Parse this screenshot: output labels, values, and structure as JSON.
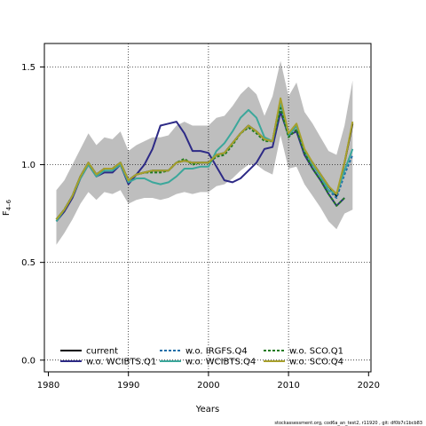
{
  "chart_data": {
    "type": "line",
    "xlabel": "Years",
    "ylabel": "F",
    "ylabel_sub": "4–6",
    "xlim": [
      1980,
      2020
    ],
    "ylim": [
      0,
      1.5
    ],
    "x_ticks": [
      1980,
      1990,
      2000,
      2010,
      2020
    ],
    "y_ticks": [
      0.0,
      0.5,
      1.0,
      1.5
    ],
    "y_tick_labels": [
      "0.0",
      "0.5",
      "1.0",
      "1.5"
    ],
    "grid": true,
    "legend_position": "bottom-left",
    "legend_columns": 3,
    "x": [
      1981,
      1982,
      1983,
      1984,
      1985,
      1986,
      1987,
      1988,
      1989,
      1990,
      1991,
      1992,
      1993,
      1994,
      1995,
      1996,
      1997,
      1998,
      1999,
      2000,
      2001,
      2002,
      2003,
      2004,
      2005,
      2006,
      2007,
      2008,
      2009,
      2010,
      2011,
      2012,
      2013,
      2014,
      2015,
      2016,
      2017,
      2018
    ],
    "band": {
      "color": "#bebebe",
      "upper": [
        0.87,
        0.92,
        1.0,
        1.08,
        1.16,
        1.1,
        1.14,
        1.13,
        1.17,
        1.07,
        1.1,
        1.12,
        1.14,
        1.14,
        1.15,
        1.2,
        1.22,
        1.2,
        1.2,
        1.2,
        1.24,
        1.25,
        1.3,
        1.36,
        1.4,
        1.36,
        1.25,
        1.35,
        1.53,
        1.35,
        1.42,
        1.27,
        1.21,
        1.14,
        1.07,
        1.05,
        1.2,
        1.43
      ],
      "lower": [
        0.59,
        0.65,
        0.72,
        0.8,
        0.86,
        0.82,
        0.86,
        0.85,
        0.87,
        0.8,
        0.82,
        0.83,
        0.83,
        0.82,
        0.83,
        0.85,
        0.86,
        0.85,
        0.86,
        0.86,
        0.89,
        0.9,
        0.93,
        0.97,
        1.0,
        1.0,
        0.97,
        0.95,
        1.15,
        0.98,
        0.99,
        0.9,
        0.84,
        0.78,
        0.71,
        0.67,
        0.75,
        0.77
      ]
    },
    "series": [
      {
        "name": "current",
        "color": "#000000",
        "dash": "",
        "values": [
          0.72,
          0.77,
          0.84,
          0.94,
          1.01,
          0.95,
          0.98,
          0.98,
          1.01,
          0.92,
          0.95,
          0.96,
          0.97,
          0.97,
          0.97,
          1.01,
          1.02,
          1.01,
          1.01,
          1.01,
          1.05,
          1.06,
          1.11,
          1.16,
          1.2,
          1.17,
          1.13,
          1.12,
          1.33,
          1.15,
          1.2,
          1.07,
          1.01,
          0.95,
          0.89,
          0.84,
          1.01,
          1.21
        ]
      },
      {
        "name": "w.o. WCIBTS.Q1",
        "color": "#2d2a86",
        "dash": "",
        "values": [
          0.71,
          0.76,
          0.83,
          0.93,
          1.0,
          0.94,
          0.96,
          0.96,
          1.0,
          0.9,
          0.95,
          1.0,
          1.08,
          1.2,
          1.21,
          1.22,
          1.16,
          1.07,
          1.07,
          1.06,
          0.99,
          0.92,
          0.91,
          0.93,
          0.97,
          1.01,
          1.08,
          1.09,
          1.27,
          1.15,
          1.17,
          1.05,
          0.98,
          0.92,
          0.85,
          0.79,
          0.83,
          null
        ]
      },
      {
        "name": "w.o. IRGFS.Q4",
        "color": "#1f6ea8",
        "dash": "3,2",
        "values": [
          0.72,
          0.77,
          0.84,
          0.94,
          1.01,
          0.95,
          0.98,
          0.98,
          1.01,
          0.92,
          0.95,
          0.96,
          0.97,
          0.97,
          0.97,
          1.01,
          1.02,
          1.01,
          1.01,
          1.01,
          1.05,
          1.06,
          1.11,
          1.16,
          1.2,
          1.17,
          1.13,
          1.12,
          1.33,
          1.15,
          1.2,
          1.07,
          1.0,
          0.94,
          0.87,
          0.83,
          0.95,
          1.05
        ]
      },
      {
        "name": "w.o. WCIBTS.Q4",
        "color": "#3ba79b",
        "dash": "",
        "values": [
          0.71,
          0.77,
          0.84,
          0.93,
          1.0,
          0.94,
          0.97,
          0.97,
          1.0,
          0.91,
          0.93,
          0.93,
          0.91,
          0.9,
          0.91,
          0.94,
          0.98,
          0.98,
          0.99,
          0.99,
          1.07,
          1.11,
          1.17,
          1.24,
          1.28,
          1.24,
          1.14,
          1.12,
          1.31,
          1.15,
          1.2,
          1.07,
          1.0,
          0.94,
          0.87,
          0.85,
          0.97,
          1.08
        ]
      },
      {
        "name": "w.o. SCO.Q1",
        "color": "#1f7a1f",
        "dash": "3,2",
        "values": [
          0.72,
          0.77,
          0.84,
          0.94,
          1.01,
          0.95,
          0.98,
          0.98,
          1.01,
          0.92,
          0.95,
          0.96,
          0.96,
          0.96,
          0.97,
          1.01,
          1.03,
          1.0,
          1.01,
          1.01,
          1.04,
          1.05,
          1.1,
          1.16,
          1.19,
          1.16,
          1.12,
          1.12,
          1.29,
          1.14,
          1.18,
          1.06,
          0.98,
          0.92,
          0.85,
          0.79,
          0.83,
          null
        ]
      },
      {
        "name": "w.o. SCO.Q4",
        "color": "#a8a02c",
        "dash": "",
        "values": [
          0.72,
          0.77,
          0.84,
          0.94,
          1.01,
          0.95,
          0.98,
          0.98,
          1.01,
          0.92,
          0.95,
          0.96,
          0.97,
          0.97,
          0.97,
          1.01,
          1.02,
          1.01,
          1.01,
          1.01,
          1.05,
          1.06,
          1.11,
          1.16,
          1.2,
          1.17,
          1.13,
          1.12,
          1.34,
          1.16,
          1.21,
          1.08,
          1.01,
          0.95,
          0.89,
          0.85,
          1.01,
          1.22
        ]
      }
    ]
  },
  "footer": "stockassessment.org, cod6a_an_test2, r11920 , git: df0b7c1bcb83"
}
